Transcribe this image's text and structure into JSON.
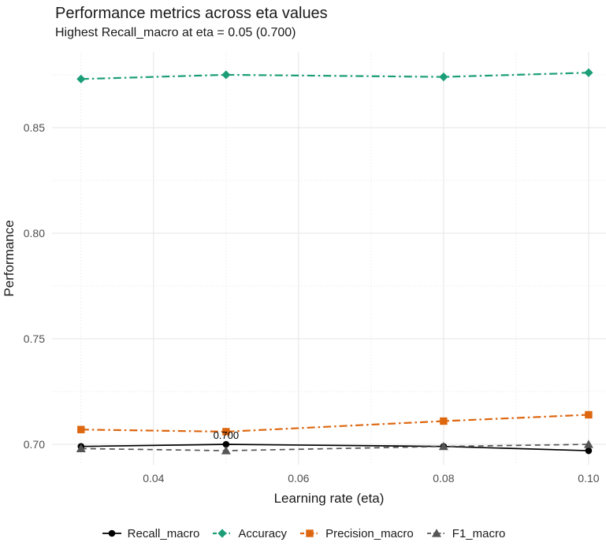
{
  "title": "Performance metrics across eta values",
  "subtitle": "Highest Recall_macro at eta = 0.05 (0.700)",
  "chart_data": {
    "type": "line",
    "x": [
      0.03,
      0.05,
      0.08,
      0.1
    ],
    "series": [
      {
        "name": "Recall_macro",
        "values": [
          0.699,
          0.7,
          0.699,
          0.697
        ],
        "color": "#000000",
        "dash": "",
        "marker": "circle",
        "width": 1.7
      },
      {
        "name": "Accuracy",
        "values": [
          0.873,
          0.875,
          0.874,
          0.876
        ],
        "color": "#1B9E77",
        "dash": "10 4 2.5 4",
        "marker": "diamond",
        "width": 2.2
      },
      {
        "name": "Precision_macro",
        "values": [
          0.707,
          0.706,
          0.711,
          0.714
        ],
        "color": "#DD660F",
        "dash": "10 4 2.5 4",
        "marker": "square",
        "width": 2.2
      },
      {
        "name": "F1_macro",
        "values": [
          0.698,
          0.697,
          0.699,
          0.7
        ],
        "color": "#555555",
        "dash": "7 5",
        "marker": "triangle",
        "width": 1.7
      }
    ],
    "xlabel": "Learning rate (eta)",
    "ylabel": "Performance",
    "x_ticks": [
      0.04,
      0.06,
      0.08,
      0.1
    ],
    "x_tick_labels": [
      "0.04",
      "0.06",
      "0.08",
      "0.10"
    ],
    "x_minor_ticks": [
      0.03,
      0.05,
      0.07,
      0.09
    ],
    "y_ticks": [
      0.7,
      0.75,
      0.8,
      0.85
    ],
    "y_tick_labels": [
      "0.70",
      "0.75",
      "0.80",
      "0.85"
    ],
    "y_minor_ticks": [
      0.725,
      0.775,
      0.825,
      0.875
    ],
    "xlim": [
      0.026,
      0.1024
    ],
    "ylim": [
      0.6903,
      0.8858
    ],
    "grid": "on",
    "legend_position": "bottom",
    "annotation": {
      "text": "0.700",
      "x": 0.05,
      "y": 0.7
    }
  },
  "colors": {
    "background": "#ffffff",
    "grid_major": "#e5e5e5",
    "grid_minor": "#efefef",
    "tick_text": "#4d4d4d"
  }
}
